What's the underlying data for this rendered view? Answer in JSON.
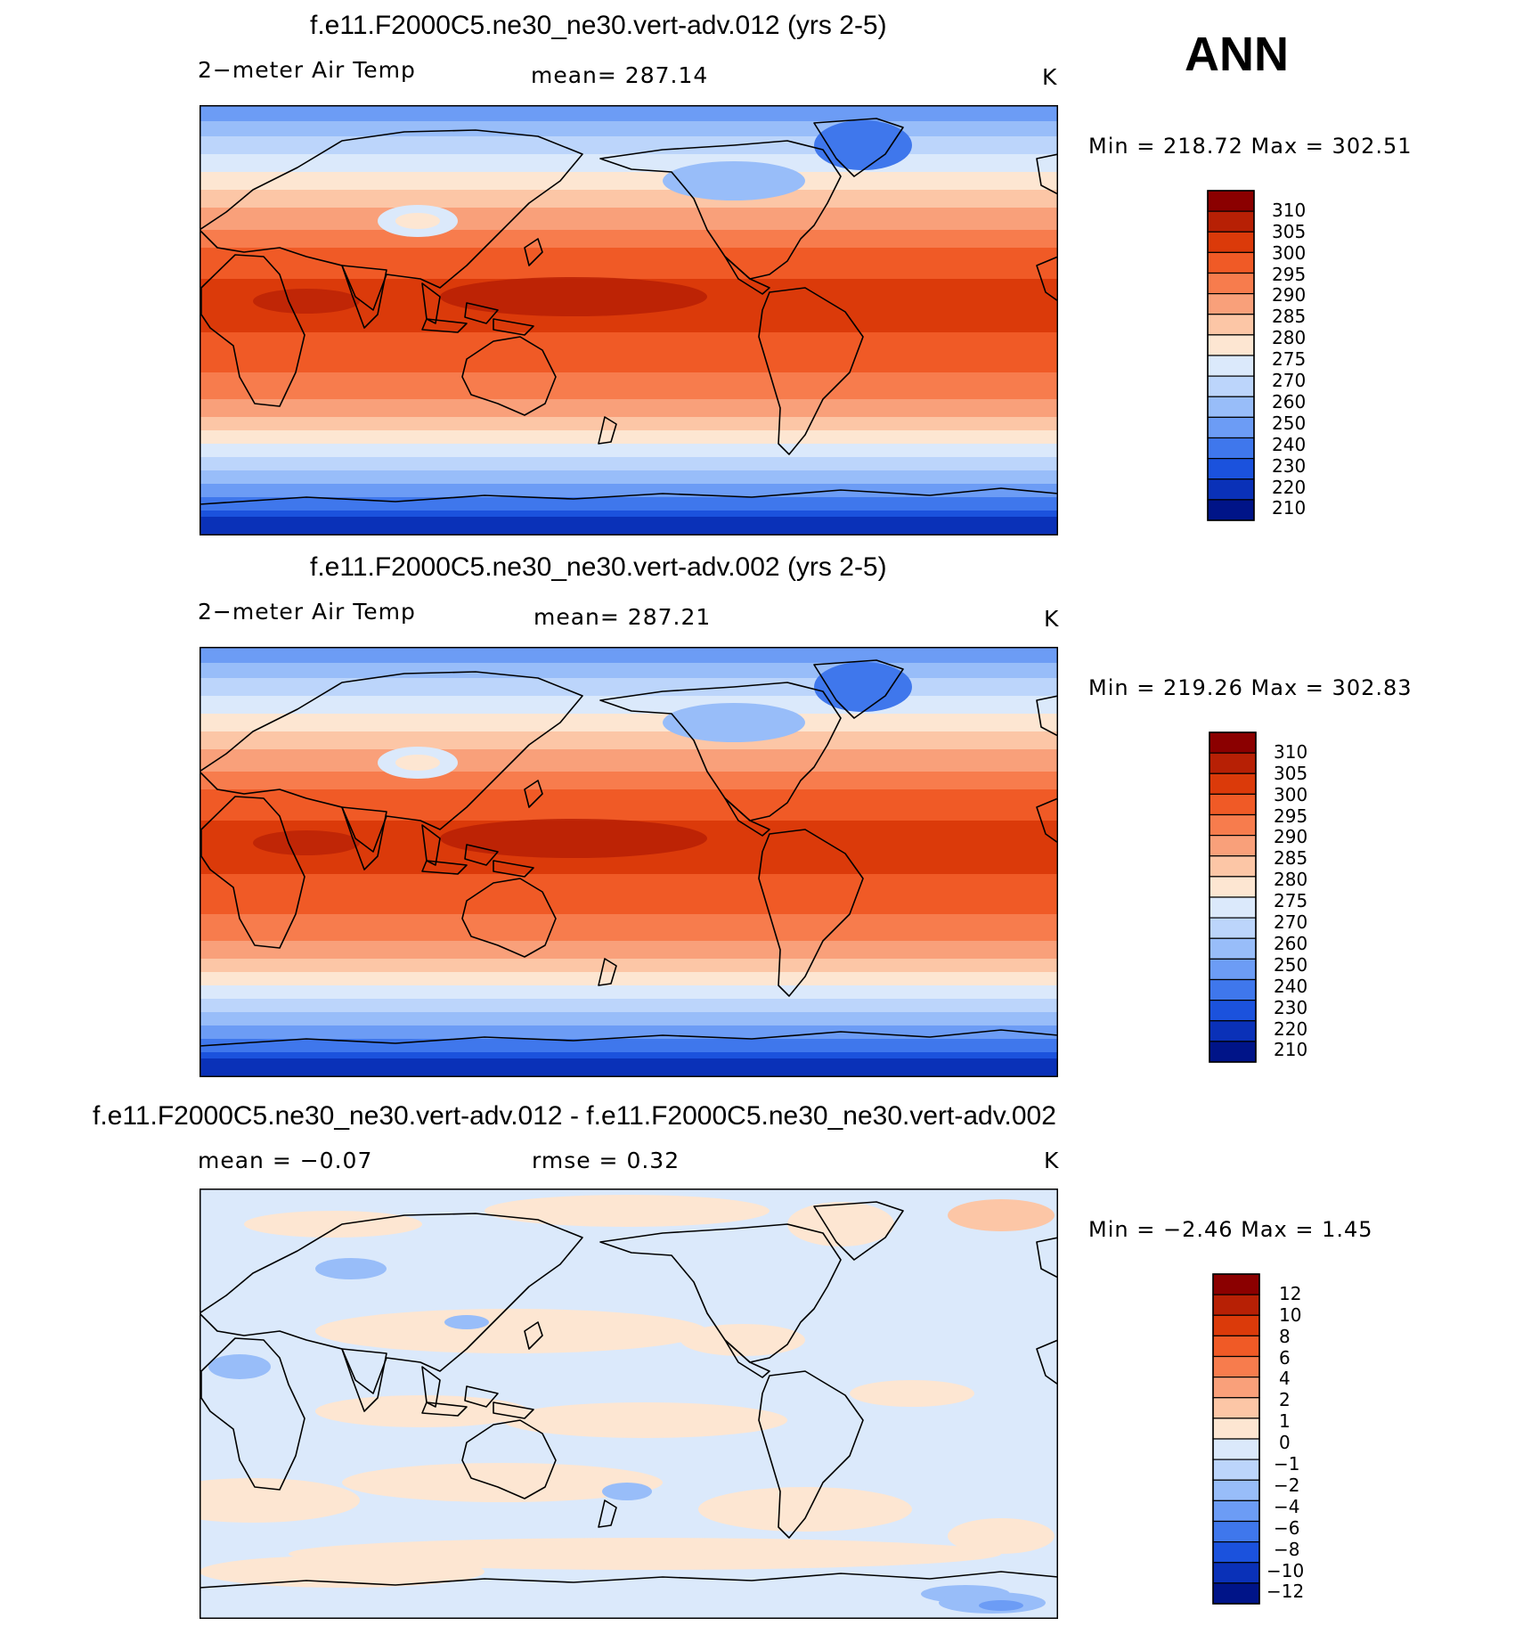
{
  "season_label": "ANN",
  "panels": [
    {
      "title": "f.e11.F2000C5.ne30_ne30.vert-adv.012 (yrs 2-5)",
      "variable_label": "2−meter Air Temp",
      "stat_text": "mean=  287.14",
      "units": "K",
      "minmax_text": "Min  =  218.72  Max  =  302.51",
      "colorbar": {
        "levels": [
          "310",
          "305",
          "300",
          "295",
          "290",
          "285",
          "280",
          "275",
          "270",
          "260",
          "250",
          "240",
          "230",
          "220",
          "210"
        ],
        "colors": [
          "#8b0000",
          "#b72005",
          "#db3a0a",
          "#f05a26",
          "#f77c4d",
          "#f9a07a",
          "#fcc6a6",
          "#fde6d2",
          "#dbe9fb",
          "#bcd5fb",
          "#98bdf9",
          "#6c9cf5",
          "#3f77ec",
          "#1b52dd",
          "#0a31b8",
          "#001488"
        ]
      },
      "map_type": "absolute"
    },
    {
      "title": "f.e11.F2000C5.ne30_ne30.vert-adv.002 (yrs 2-5)",
      "variable_label": "2−meter Air Temp",
      "stat_text": "mean=  287.21",
      "units": "K",
      "minmax_text": "Min  =  219.26  Max  =  302.83",
      "colorbar": {
        "levels": [
          "310",
          "305",
          "300",
          "295",
          "290",
          "285",
          "280",
          "275",
          "270",
          "260",
          "250",
          "240",
          "230",
          "220",
          "210"
        ],
        "colors": [
          "#8b0000",
          "#b72005",
          "#db3a0a",
          "#f05a26",
          "#f77c4d",
          "#f9a07a",
          "#fcc6a6",
          "#fde6d2",
          "#dbe9fb",
          "#bcd5fb",
          "#98bdf9",
          "#6c9cf5",
          "#3f77ec",
          "#1b52dd",
          "#0a31b8",
          "#001488"
        ]
      },
      "map_type": "absolute"
    },
    {
      "title": "f.e11.F2000C5.ne30_ne30.vert-adv.012 - f.e11.F2000C5.ne30_ne30.vert-adv.002",
      "variable_label": "mean =    −0.07",
      "stat_text": "rmse =     0.32",
      "units": "K",
      "minmax_text": "Min  =    −2.46  Max  =     1.45",
      "colorbar": {
        "levels": [
          "12",
          "10",
          "8",
          "6",
          "4",
          "2",
          "1",
          "0",
          "−1",
          "−2",
          "−4",
          "−6",
          "−8",
          "−10",
          "−12"
        ],
        "colors": [
          "#8b0000",
          "#b72005",
          "#db3a0a",
          "#f05a26",
          "#f77c4d",
          "#f9a07a",
          "#fcc6a6",
          "#fde6d2",
          "#dbe9fb",
          "#bcd5fb",
          "#98bdf9",
          "#6c9cf5",
          "#3f77ec",
          "#1b52dd",
          "#0a31b8",
          "#001488"
        ]
      },
      "map_type": "difference"
    }
  ]
}
